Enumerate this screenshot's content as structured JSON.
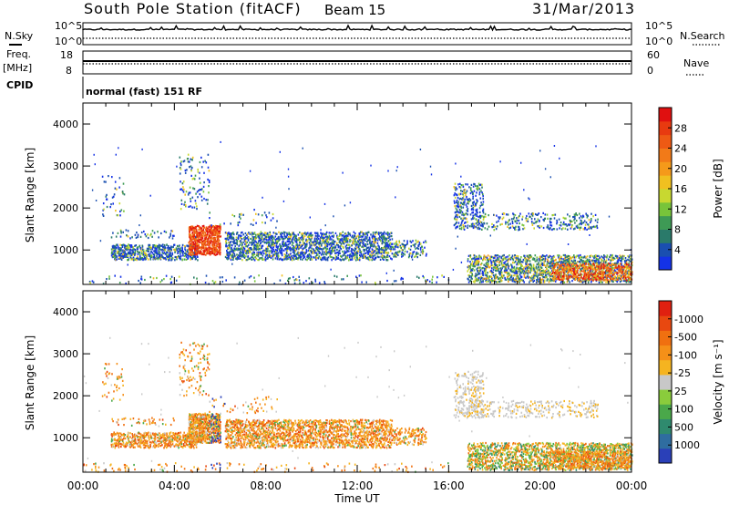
{
  "header": {
    "station": "South Pole Station (fitACF)",
    "beam": "Beam 15",
    "date": "31/Mar/2013"
  },
  "strips": {
    "nsky_label": "N.Sky",
    "nsearch_label": "N.Search",
    "nsky_ticks": [
      "10^5",
      "10^0"
    ],
    "nsearch_ticks": [
      "10^5",
      "10^0"
    ],
    "freq_label_1": "Freq.",
    "freq_label_2": "[MHz]",
    "freq_ticks": [
      "18",
      "8"
    ],
    "nave_label": "Nave",
    "nave_ticks": [
      "60",
      "0"
    ],
    "cpid_label": "CPID",
    "cpid_text": "normal (fast) 151 RF"
  },
  "chart_data": [
    {
      "type": "heatmap",
      "name": "power-panel",
      "ylabel": "Slant Range [km]",
      "xlabel": "",
      "x_ticks": [
        "00:00",
        "04:00",
        "08:00",
        "12:00",
        "16:00",
        "20:00",
        "00:00"
      ],
      "y_ticks": [
        1000,
        2000,
        3000,
        4000
      ],
      "ylim": [
        180,
        4500
      ],
      "xlim_hours": [
        0,
        24
      ],
      "colorbar": {
        "label": "Power [dB]",
        "ticks": [
          "4",
          "8",
          "12",
          "16",
          "20",
          "24",
          "28"
        ],
        "colors": [
          "#1432e6",
          "#1a4fb0",
          "#2a7a6a",
          "#3e9a55",
          "#78c43a",
          "#c8d830",
          "#f0c020",
          "#f59a1a",
          "#f27a18",
          "#ee5a14",
          "#e83a10",
          "#e01010"
        ]
      }
    },
    {
      "type": "heatmap",
      "name": "velocity-panel",
      "ylabel": "Slant Range [km]",
      "xlabel": "Time UT",
      "x_ticks": [
        "00:00",
        "04:00",
        "08:00",
        "12:00",
        "16:00",
        "20:00",
        "00:00"
      ],
      "y_ticks": [
        1000,
        2000,
        3000,
        4000
      ],
      "ylim": [
        180,
        4500
      ],
      "xlim_hours": [
        0,
        24
      ],
      "colorbar": {
        "label": "Velocity [m s⁻¹]",
        "ticks": [
          "1000",
          "500",
          "100",
          "25",
          "-25",
          "-100",
          "-500",
          "-1000"
        ],
        "colors": [
          "#2a40b8",
          "#2f6da0",
          "#2f8a6e",
          "#4aa84a",
          "#8acc3c",
          "#c8c8c8",
          "#f5b420",
          "#f59018",
          "#f07010",
          "#e84810",
          "#e02010"
        ]
      }
    }
  ],
  "axes": {
    "xlabel": "Time UT"
  }
}
